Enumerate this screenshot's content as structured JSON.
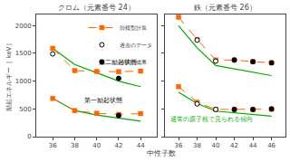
{
  "chart_data": [
    {
      "type": "line",
      "title": "クロム（元素番号 24）",
      "x_label": "中性子数",
      "y_label": "励起エネルギー［ keV］",
      "x": [
        36,
        38,
        40,
        42,
        44
      ],
      "xlim": [
        34.5,
        45.5
      ],
      "xticks": [
        36,
        38,
        40,
        42,
        44
      ],
      "ylim": [
        0,
        2200
      ],
      "yticks": [
        0,
        500,
        1000,
        1500,
        2000
      ],
      "grid": false,
      "legend": "upper right",
      "annotations": [
        {
          "text": "第二励起状態"
        },
        {
          "text": "第一励起状態"
        }
      ],
      "series": [
        {
          "type": "line",
          "color": "#00AA00",
          "line_style": "solid",
          "values": [
            690,
            470,
            390,
            330,
            280
          ]
        },
        {
          "type": "line",
          "color": "#00AA00",
          "line_style": "solid",
          "values": [
            1590,
            1300,
            1150,
            1000,
            900
          ]
        },
        {
          "name": "殻模型計算",
          "type": "line",
          "color": "#FF6600",
          "line_style": "dashed",
          "marker": "square",
          "values": [
            690,
            470,
            420,
            400,
            415
          ]
        },
        {
          "name": "殻模型計算",
          "type": "line",
          "color": "#FF6600",
          "line_style": "dashed",
          "marker": "square",
          "values": [
            1590,
            1190,
            1175,
            1170,
            1180
          ]
        },
        {
          "name": "過去のデータ",
          "type": "scatter",
          "color": "#000000",
          "marker": "open_circle",
          "x": [
            36
          ],
          "values": [
            1490
          ]
        },
        {
          "name": "今回の成果",
          "type": "scatter",
          "color": "#000000",
          "marker": "circle",
          "x": [
            42
          ],
          "values": [
            380
          ]
        },
        {
          "name": "今回の成果",
          "type": "scatter",
          "color": "#000000",
          "marker": "circle",
          "x": [
            42
          ],
          "values": [
            1050
          ]
        }
      ]
    },
    {
      "type": "line",
      "title": "鉄（元素番号 26）",
      "x": [
        36,
        38,
        40,
        42,
        44,
        46
      ],
      "xlim": [
        34.5,
        47.5
      ],
      "xticks": [
        36,
        38,
        40,
        42,
        44,
        46
      ],
      "ylim": [
        0,
        2200
      ],
      "yticks": [
        0,
        500,
        1000,
        1500,
        2000
      ],
      "grid": false,
      "tick_labels": "x",
      "annotations": [
        {
          "text": "通常の原子核で見られる傾向",
          "color": "#00AA00"
        }
      ],
      "series": [
        {
          "type": "line",
          "color": "#00AA00",
          "line_style": "solid",
          "values": [
            800,
            600,
            460,
            430,
            400,
            370
          ]
        },
        {
          "type": "line",
          "color": "#00AA00",
          "line_style": "solid",
          "values": [
            2000,
            1600,
            1280,
            1220,
            1160,
            1100
          ]
        },
        {
          "name": "殻模型計算",
          "type": "line",
          "color": "#FF6600",
          "line_style": "dashed",
          "marker": "square",
          "values": [
            900,
            620,
            490,
            490,
            490,
            495
          ]
        },
        {
          "name": "殻模型計算",
          "type": "line",
          "color": "#FF6600",
          "line_style": "dashed",
          "marker": "square",
          "values": [
            2150,
            1750,
            1380,
            1380,
            1350,
            1330
          ]
        },
        {
          "name": "過去のデータ",
          "type": "scatter",
          "color": "#000000",
          "marker": "open_circle",
          "x": [
            38,
            40
          ],
          "values": [
            590,
            490
          ]
        },
        {
          "name": "過去のデータ",
          "type": "scatter",
          "color": "#000000",
          "marker": "open_circle",
          "x": [
            38,
            40
          ],
          "values": [
            1740,
            1360
          ]
        },
        {
          "name": "今回の成果",
          "type": "scatter",
          "color": "#000000",
          "marker": "circle",
          "x": [
            42,
            44,
            46
          ],
          "values": [
            490,
            490,
            500
          ]
        },
        {
          "name": "今回の成果",
          "type": "scatter",
          "color": "#000000",
          "marker": "circle",
          "x": [
            42,
            44,
            46
          ],
          "values": [
            1380,
            1350,
            1330
          ]
        }
      ]
    }
  ]
}
